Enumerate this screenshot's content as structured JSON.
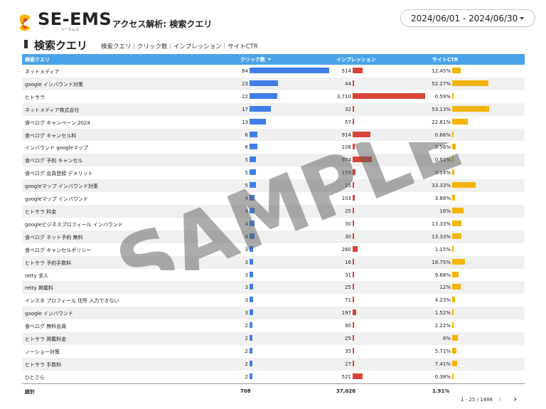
{
  "header": {
    "brand": "SE-EMS",
    "brand_sub": "シーエムス",
    "page_heading": "アクセス解析: 検索クエリ",
    "date_range": "2024/06/01 - 2024/06/30"
  },
  "section": {
    "title": "検索クエリ",
    "subtitle": "検索クエリ｜クリック数｜インプレッション｜サイトCTR"
  },
  "table": {
    "columns": {
      "query": "検索クエリ",
      "clicks": "クリック数",
      "impressions": "インプレッション",
      "ctr": "サイトCTR"
    },
    "rows": [
      {
        "query": "ネットメディア",
        "clicks": "64",
        "impressions": "514",
        "ctr": "12.45%"
      },
      {
        "query": "google インバウンド対策",
        "clicks": "23",
        "impressions": "44",
        "ctr": "52.27%"
      },
      {
        "query": "ヒトサラ",
        "clicks": "22",
        "impressions": "3,710",
        "ctr": "0.59%"
      },
      {
        "query": "ネットメディア株式会社",
        "clicks": "17",
        "impressions": "32",
        "ctr": "53.13%"
      },
      {
        "query": "食べログ キャンペーン 2024",
        "clicks": "13",
        "impressions": "57",
        "ctr": "22.81%"
      },
      {
        "query": "食べログ キャンセル料",
        "clicks": "6",
        "impressions": "914",
        "ctr": "0.66%"
      },
      {
        "query": "インバウンド googleマップ",
        "clicks": "6",
        "impressions": "108",
        "ctr": "5.56%"
      },
      {
        "query": "食べログ 予約 キャンセル",
        "clicks": "5",
        "impressions": "974",
        "ctr": "0.51%"
      },
      {
        "query": "食べログ 会員登録 デメリット",
        "clicks": "5",
        "impressions": "159",
        "ctr": "3.14%"
      },
      {
        "query": "googleマップ インバウンド対策",
        "clicks": "5",
        "impressions": "15",
        "ctr": "33.33%"
      },
      {
        "query": "googleマップ インバウンド",
        "clicks": "4",
        "impressions": "103",
        "ctr": "3.88%"
      },
      {
        "query": "ヒトサラ 料金",
        "clicks": "4",
        "impressions": "25",
        "ctr": "16%"
      },
      {
        "query": "googleビジネスプロフィール インバウンド",
        "clicks": "4",
        "impressions": "30",
        "ctr": "13.33%"
      },
      {
        "query": "食べログ ネット予約 無料",
        "clicks": "4",
        "impressions": "30",
        "ctr": "13.33%"
      },
      {
        "query": "食べログ キャンセルポリシー",
        "clicks": "3",
        "impressions": "260",
        "ctr": "1.15%"
      },
      {
        "query": "ヒトサラ 予約手数料",
        "clicks": "3",
        "impressions": "16",
        "ctr": "18.75%"
      },
      {
        "query": "retty 求人",
        "clicks": "3",
        "impressions": "31",
        "ctr": "9.68%"
      },
      {
        "query": "retty 掲載料",
        "clicks": "3",
        "impressions": "25",
        "ctr": "12%"
      },
      {
        "query": "インスタ プロフィール 住所 入力できない",
        "clicks": "3",
        "impressions": "71",
        "ctr": "4.23%"
      },
      {
        "query": "google インバウンド",
        "clicks": "3",
        "impressions": "197",
        "ctr": "1.52%"
      },
      {
        "query": "食べログ 無料会員",
        "clicks": "2",
        "impressions": "90",
        "ctr": "2.22%"
      },
      {
        "query": "ヒトサラ 掲載料金",
        "clicks": "2",
        "impressions": "25",
        "ctr": "8%"
      },
      {
        "query": "ノーショー対策",
        "clicks": "2",
        "impressions": "35",
        "ctr": "5.71%"
      },
      {
        "query": "ヒトサラ 手数料",
        "clicks": "2",
        "impressions": "27",
        "ctr": "7.41%"
      },
      {
        "query": "ひとさら",
        "clicks": "2",
        "impressions": "521",
        "ctr": "0.38%"
      }
    ],
    "totals": {
      "label": "総計",
      "clicks": "708",
      "impressions": "37,028",
      "ctr": "1.91%"
    }
  },
  "pagination": {
    "text": "1 - 25 / 1486",
    "prev": "‹",
    "next": "›"
  },
  "watermark": "SAMPLE",
  "colors": {
    "header_bg": "#4aa3e8",
    "clicks_bar": "#3f7ee8",
    "impressions_bar": "#d9443a",
    "ctr_bar": "#f4b400"
  }
}
